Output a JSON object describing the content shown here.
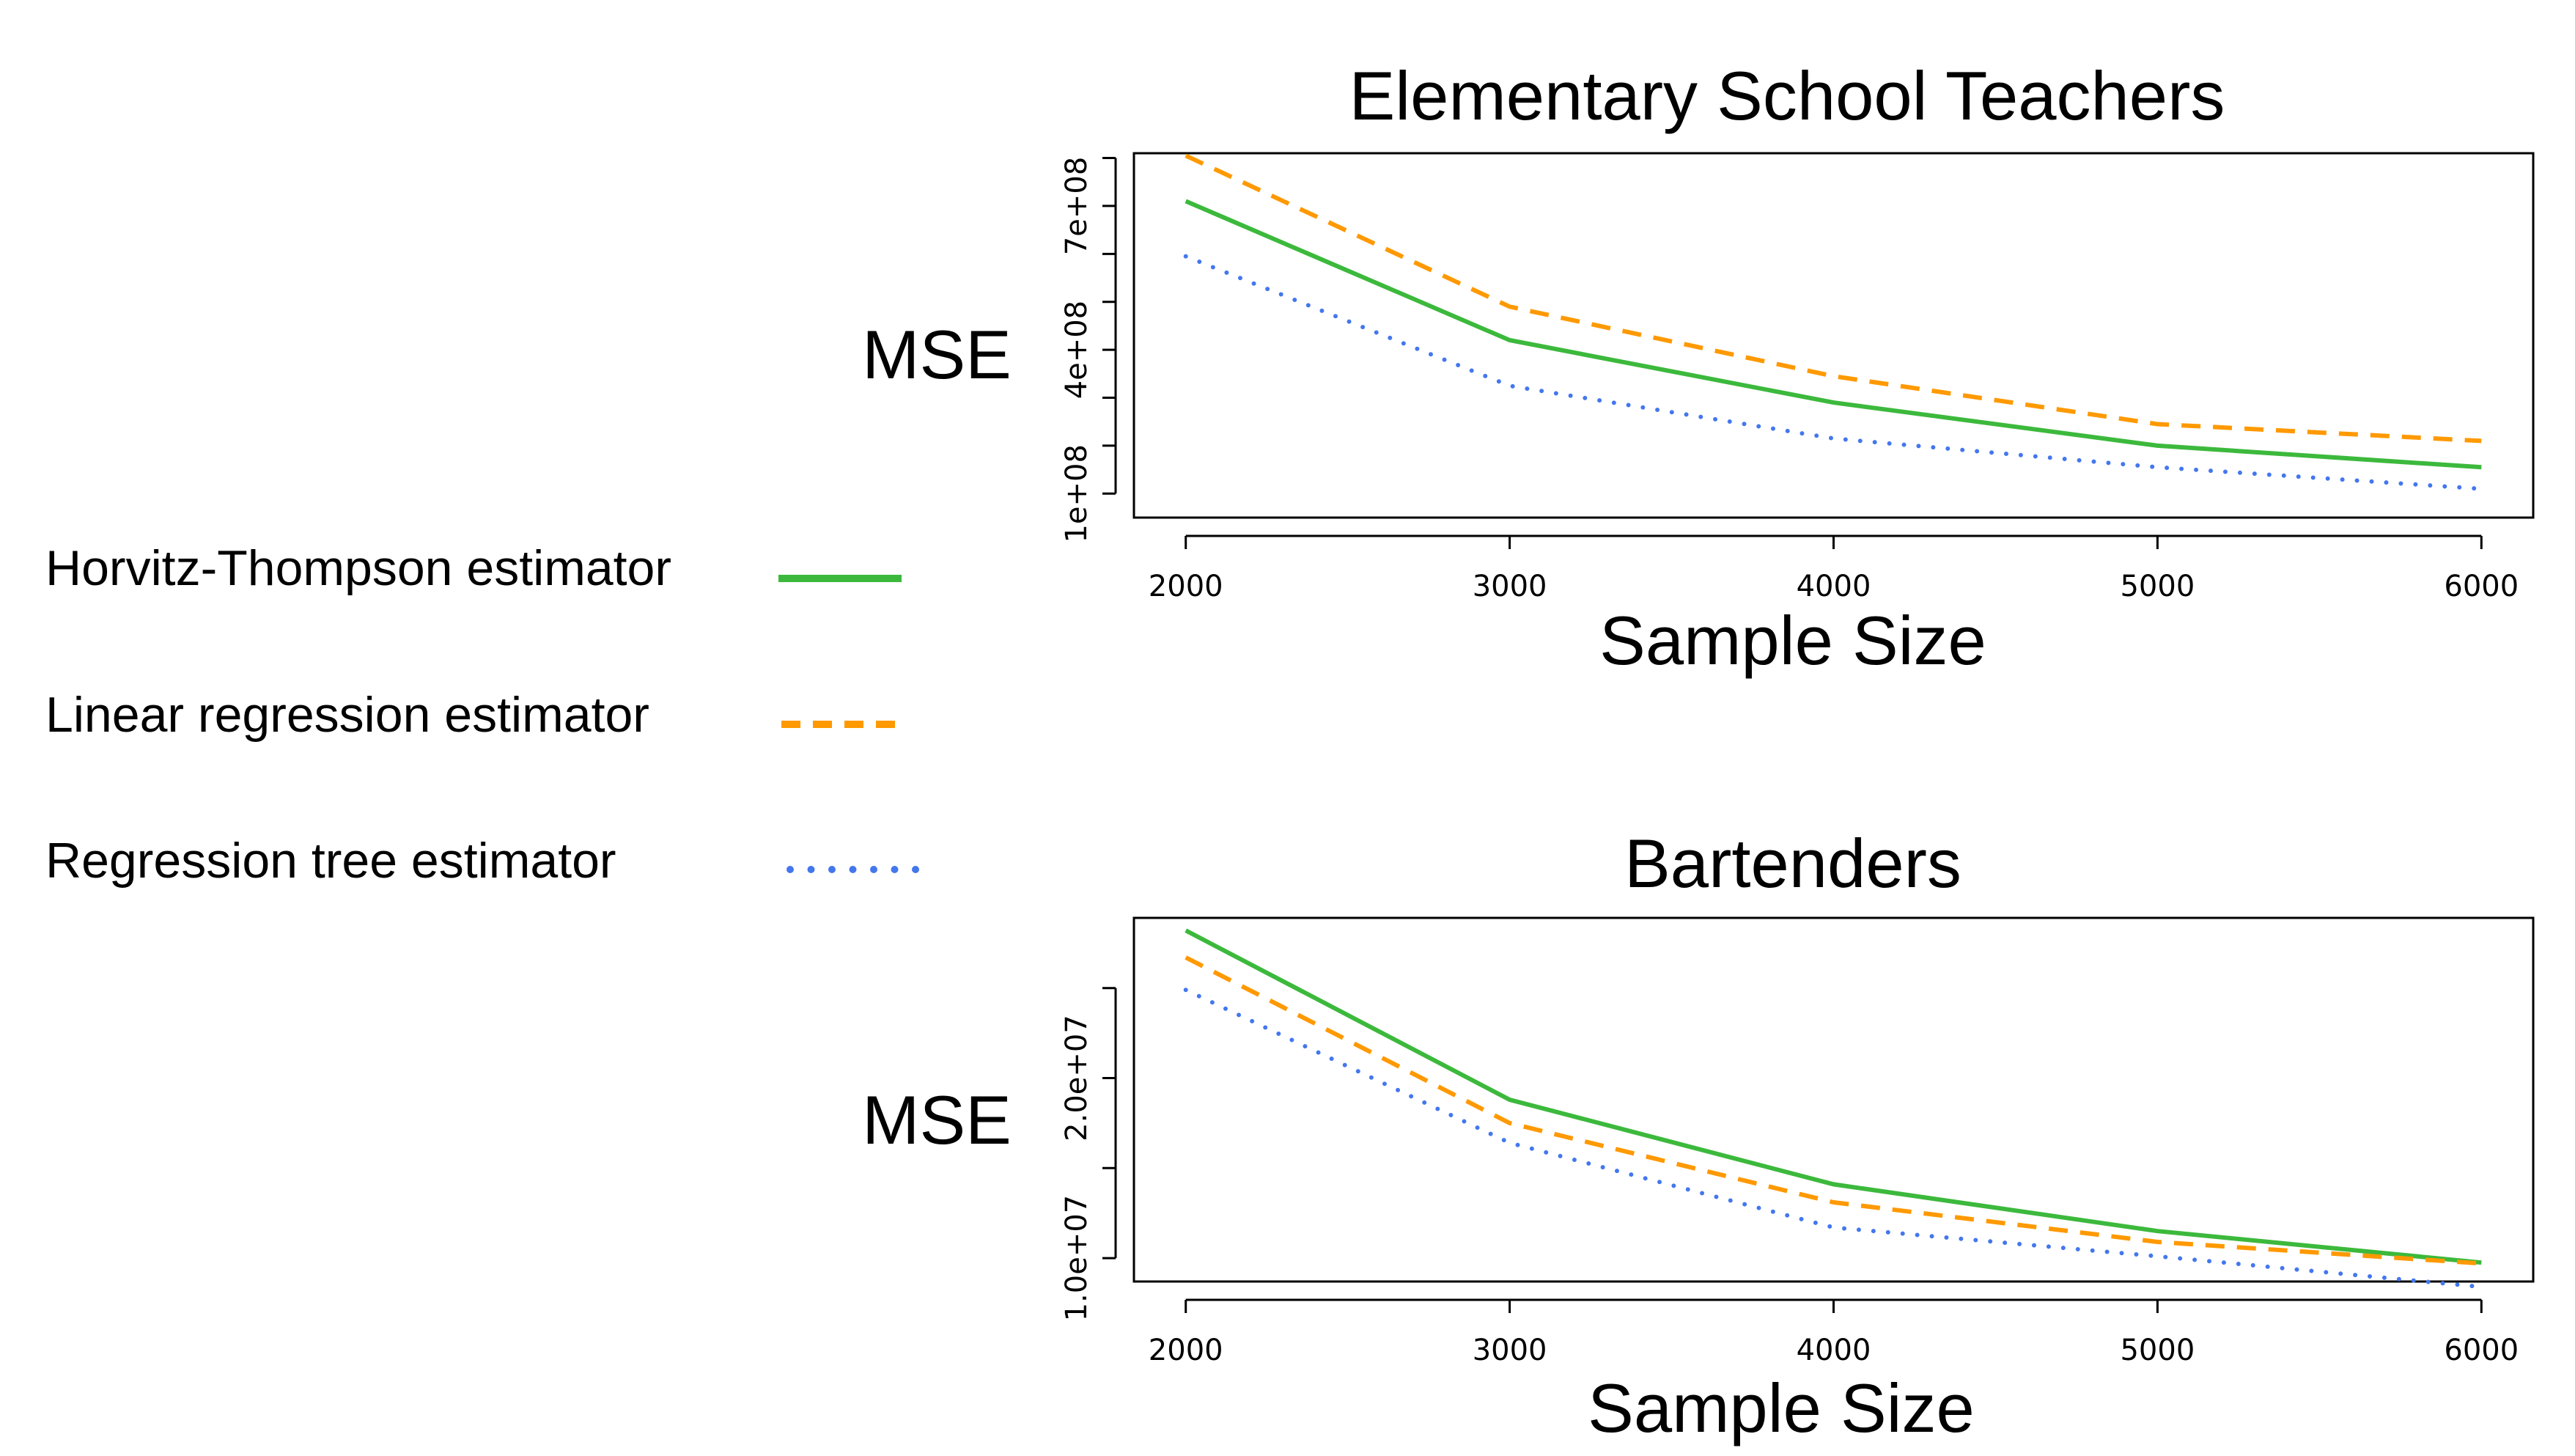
{
  "legend": {
    "items": [
      {
        "label": "Horvitz-Thompson estimator",
        "color": "#3cb93c",
        "style": "solid"
      },
      {
        "label": "Linear regression estimator",
        "color": "#ff9900",
        "style": "dashed"
      },
      {
        "label": "Regression tree estimator",
        "color": "#4477ee",
        "style": "dotted"
      }
    ]
  },
  "chart_data": [
    {
      "type": "line",
      "title": "Elementary School Teachers",
      "xlabel": "Sample Size",
      "ylabel": "MSE",
      "x": [
        2000,
        3000,
        4000,
        5000,
        6000
      ],
      "xticks": [
        2000,
        3000,
        4000,
        5000,
        6000
      ],
      "xtick_labels": [
        "2000",
        "3000",
        "4000",
        "5000",
        "6000"
      ],
      "xlim": [
        1840,
        6160
      ],
      "ylim": [
        50000000,
        810000000
      ],
      "yticks": [
        100000000,
        200000000,
        300000000,
        400000000,
        500000000,
        600000000,
        700000000,
        800000000
      ],
      "ytick_labels": [
        "1e+08",
        "",
        "",
        "4e+08",
        "",
        "",
        "7e+08",
        ""
      ],
      "grid": false,
      "series": [
        {
          "name": "Horvitz-Thompson estimator",
          "color": "#3cb93c",
          "style": "solid",
          "values": [
            710000000,
            420000000,
            290000000,
            200000000,
            155000000
          ]
        },
        {
          "name": "Linear regression estimator",
          "color": "#ff9900",
          "style": "dashed",
          "values": [
            805000000,
            490000000,
            345000000,
            245000000,
            210000000
          ]
        },
        {
          "name": "Regression tree estimator",
          "color": "#4477ee",
          "style": "dotted",
          "values": [
            595000000,
            325000000,
            215000000,
            155000000,
            110000000
          ]
        }
      ]
    },
    {
      "type": "line",
      "title": "Bartenders",
      "xlabel": "Sample Size",
      "ylabel": "MSE",
      "x": [
        2000,
        3000,
        4000,
        5000,
        6000
      ],
      "xticks": [
        2000,
        3000,
        4000,
        5000,
        6000
      ],
      "xtick_labels": [
        "2000",
        "3000",
        "4000",
        "5000",
        "6000"
      ],
      "xlim": [
        1840,
        6160
      ],
      "ylim": [
        8700000,
        28900000
      ],
      "yticks": [
        10000000,
        15000000,
        20000000,
        25000000
      ],
      "ytick_labels": [
        "1.0e+07",
        "",
        "2.0e+07",
        ""
      ],
      "grid": false,
      "series": [
        {
          "name": "Horvitz-Thompson estimator",
          "color": "#3cb93c",
          "style": "solid",
          "values": [
            28200000,
            18800000,
            14100000,
            11500000,
            9750000
          ]
        },
        {
          "name": "Linear regression estimator",
          "color": "#ff9900",
          "style": "dashed",
          "values": [
            26700000,
            17500000,
            13100000,
            10900000,
            9700000
          ]
        },
        {
          "name": "Regression tree estimator",
          "color": "#4477ee",
          "style": "dotted",
          "values": [
            24900000,
            16400000,
            11700000,
            10100000,
            8400000
          ]
        }
      ]
    }
  ]
}
